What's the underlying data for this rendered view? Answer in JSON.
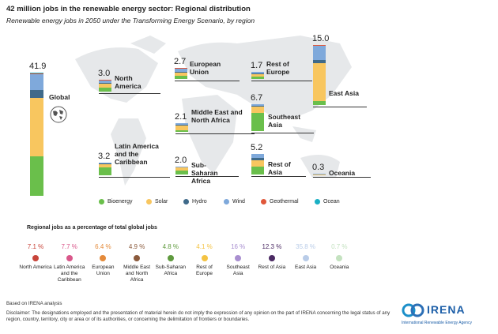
{
  "chart_data": {
    "type": "stacked_bar",
    "title": "42 million jobs in the renewable energy sector: Regional distribution",
    "subtitle": "Renewable energy jobs in 2050 under the Transforming Energy Scenario, by region",
    "categories": [
      "Global",
      "North America",
      "European Union",
      "Rest of Europe",
      "Middle East and North Africa",
      "Southeast Asia",
      "East Asia",
      "Latin America and the Caribbean",
      "Sub-Saharan Africa",
      "Rest of Asia",
      "Oceania"
    ],
    "totals": [
      41.9,
      3.0,
      2.7,
      1.7,
      2.1,
      6.7,
      15.0,
      3.2,
      2.0,
      5.2,
      0.3
    ],
    "total_labels": [
      "41.9",
      "3.0",
      "2.7",
      "1.7",
      "2.1",
      "6.7",
      "15.0",
      "3.2",
      "2.0",
      "5.2",
      "0.3"
    ],
    "series": [
      {
        "name": "Bioenergy",
        "color": "#6abf4b",
        "values": [
          13.5,
          0.9,
          0.8,
          0.6,
          0.4,
          4.5,
          1.0,
          1.9,
          0.9,
          2.0,
          0.1
        ]
      },
      {
        "name": "Solar",
        "color": "#f8c65f",
        "values": [
          19.7,
          1.1,
          0.9,
          0.5,
          1.3,
          1.7,
          9.5,
          0.8,
          0.9,
          1.6,
          0.1
        ]
      },
      {
        "name": "Hydro",
        "color": "#3f6a8a",
        "values": [
          2.7,
          0.2,
          0.1,
          0.2,
          0.1,
          0.2,
          0.8,
          0.2,
          0.1,
          0.6,
          0
        ]
      },
      {
        "name": "Wind",
        "color": "#7fa9db",
        "values": [
          5.8,
          0.7,
          0.8,
          0.4,
          0.3,
          0.3,
          3.6,
          0.3,
          0.1,
          1.0,
          0.1
        ]
      },
      {
        "name": "Geothermal",
        "color": "#e0573a",
        "values": [
          0.1,
          0.1,
          0.1,
          0,
          0,
          0,
          0.1,
          0,
          0,
          0,
          0
        ]
      },
      {
        "name": "Ocean",
        "color": "#1ab0c4",
        "values": [
          0.1,
          0,
          0,
          0,
          0,
          0,
          0,
          0,
          0,
          0,
          0
        ]
      }
    ]
  },
  "shares": {
    "title": "Regional jobs as a percentage of total global jobs",
    "categories": [
      "North America",
      "Latin America and the Caribbean",
      "European Union",
      "Middle East and North Africa",
      "Sub-Saharan Africa",
      "Rest of Europe",
      "Southeast Asia",
      "Rest of Asia",
      "East Asia",
      "Oceania"
    ],
    "values": [
      7.1,
      7.7,
      6.4,
      4.9,
      4.8,
      4.1,
      16,
      12.3,
      35.8,
      0.7
    ],
    "value_labels": [
      "7.1 %",
      "7.7 %",
      "6.4 %",
      "4.9 %",
      "4.8 %",
      "4.1 %",
      "16 %",
      "12.3 %",
      "35.8 %",
      "0.7 %"
    ],
    "colors": [
      "#c8443a",
      "#d9578a",
      "#e48a3a",
      "#8b5a3c",
      "#5f9a3e",
      "#f4c343",
      "#a98fd0",
      "#4b2a63",
      "#b9cce8",
      "#c4e2c0"
    ]
  },
  "footer": {
    "source": "Based on IRENA analysis",
    "disclaimer": "Disclaimer: The designations employed and the presentation of material herein do not imply the expression of any opinion on the part of IRENA concerning the legal status of any region, country, territory, city or area or of its authorities, or concerning the delimitation of frontiers or boundaries.",
    "logo": "IRENA",
    "logo_sub": "International Renewable Energy Agency"
  }
}
